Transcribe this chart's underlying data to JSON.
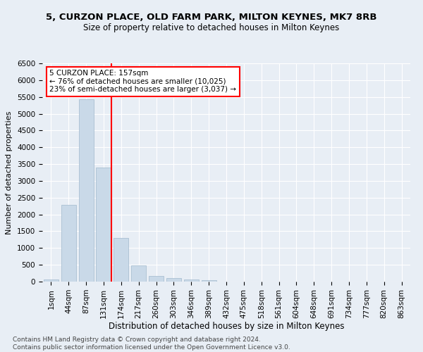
{
  "title1": "5, CURZON PLACE, OLD FARM PARK, MILTON KEYNES, MK7 8RB",
  "title2": "Size of property relative to detached houses in Milton Keynes",
  "xlabel": "Distribution of detached houses by size in Milton Keynes",
  "ylabel": "Number of detached properties",
  "footnote": "Contains HM Land Registry data © Crown copyright and database right 2024.\nContains public sector information licensed under the Open Government Licence v3.0.",
  "bar_labels": [
    "1sqm",
    "44sqm",
    "87sqm",
    "131sqm",
    "174sqm",
    "217sqm",
    "260sqm",
    "303sqm",
    "346sqm",
    "389sqm",
    "432sqm",
    "475sqm",
    "518sqm",
    "561sqm",
    "604sqm",
    "648sqm",
    "691sqm",
    "734sqm",
    "777sqm",
    "820sqm",
    "863sqm"
  ],
  "bar_values": [
    60,
    2280,
    5430,
    3390,
    1300,
    490,
    170,
    100,
    60,
    40,
    10,
    0,
    0,
    0,
    0,
    0,
    0,
    0,
    0,
    0,
    0
  ],
  "bar_color": "#c9d9e8",
  "bar_edgecolor": "#a0b8cc",
  "vline_index": 3,
  "vline_color": "red",
  "annotation_text": "5 CURZON PLACE: 157sqm\n← 76% of detached houses are smaller (10,025)\n23% of semi-detached houses are larger (3,037) →",
  "annotation_box_color": "red",
  "ylim": [
    0,
    6500
  ],
  "yticks": [
    0,
    500,
    1000,
    1500,
    2000,
    2500,
    3000,
    3500,
    4000,
    4500,
    5000,
    5500,
    6000,
    6500
  ],
  "background_color": "#e8eef5",
  "grid_color": "#ffffff",
  "title1_fontsize": 9.5,
  "title2_fontsize": 8.5,
  "xlabel_fontsize": 8.5,
  "ylabel_fontsize": 8,
  "tick_fontsize": 7.5,
  "annotation_fontsize": 7.5,
  "footnote_fontsize": 6.5
}
